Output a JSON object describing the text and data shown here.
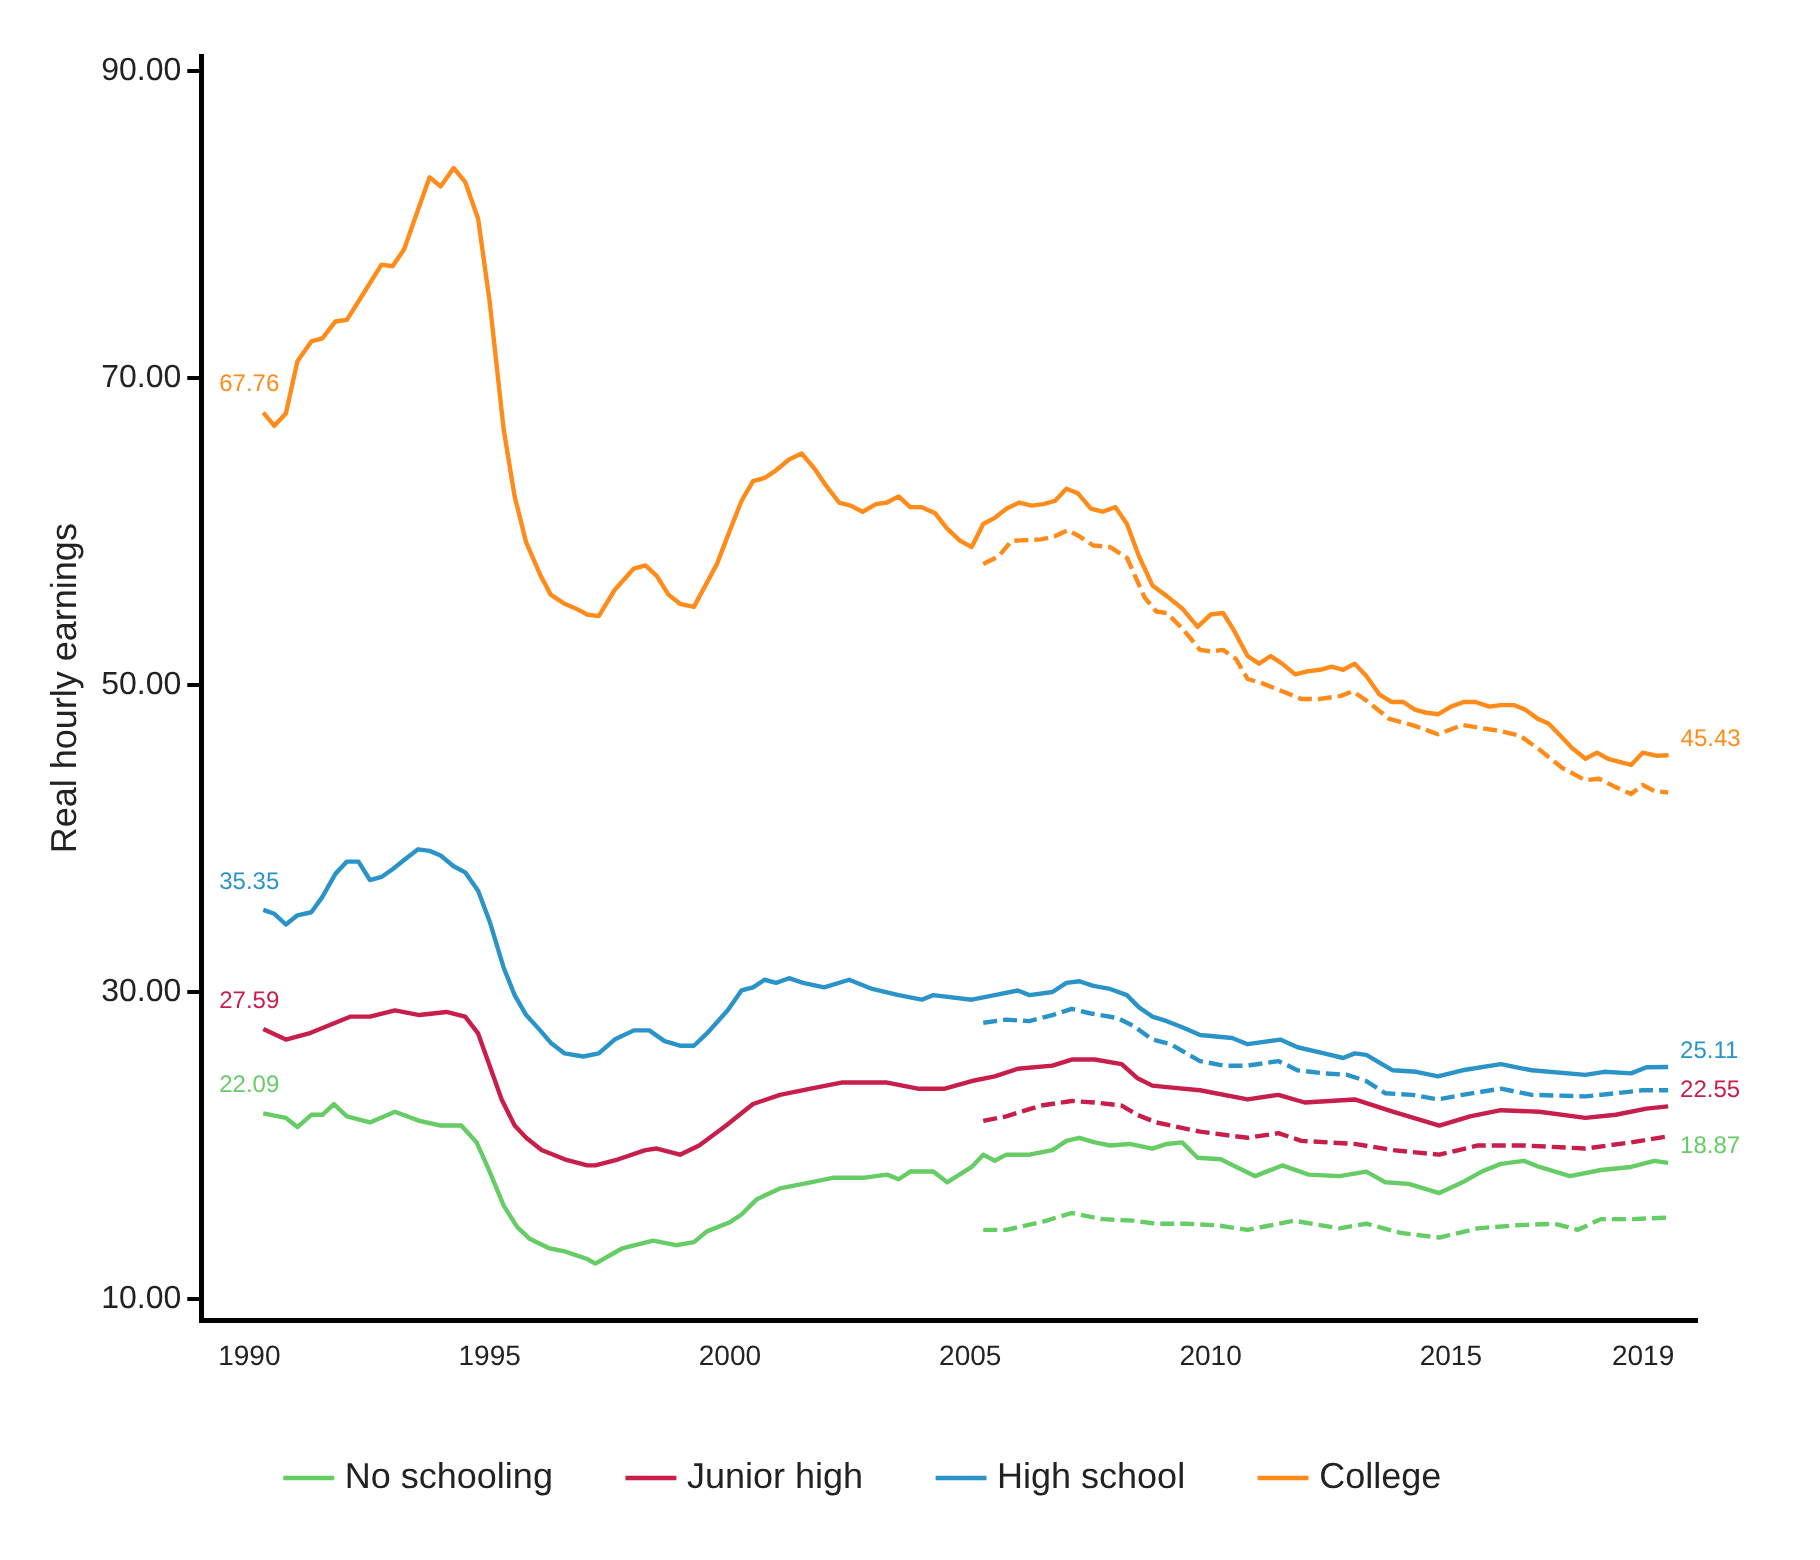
{
  "chart_data": {
    "type": "line",
    "ylabel": "Real hourly earnings",
    "xlim": [
      1989.0,
      2020.1
    ],
    "xticks": [
      1990,
      1995,
      2000,
      2005,
      2010,
      2015,
      2019
    ],
    "ylim": [
      8.6,
      91
    ],
    "yticks": [
      {
        "value": 10,
        "label": "10.00"
      },
      {
        "value": 30,
        "label": "30.00"
      },
      {
        "value": 50,
        "label": "50.00"
      },
      {
        "value": 70,
        "label": "70.00"
      },
      {
        "value": 90,
        "label": "90.00"
      }
    ],
    "grid": false,
    "legend": "bottom",
    "marker": "none",
    "series": [
      {
        "name": "No schooling",
        "color": "#66cc66",
        "line_style": "solid",
        "x": [
          1990.29,
          1990.76,
          1991.0,
          1991.29,
          1991.52,
          1991.76,
          1992.03,
          1992.51,
          1993.03,
          1993.54,
          1993.98,
          1994.41,
          1994.73,
          1995.0,
          1995.29,
          1995.57,
          1995.84,
          1996.24,
          1996.56,
          1997.03,
          1997.2,
          1997.76,
          1998.4,
          1998.88,
          1999.25,
          1999.52,
          2000.0,
          2000.24,
          2000.56,
          2001.04,
          2001.68,
          2002.16,
          2002.8,
          2003.27,
          2003.51,
          2003.75,
          2004.23,
          2004.52,
          2005.03,
          2005.27,
          2005.51,
          2005.75,
          2006.23,
          2006.71,
          2007.0,
          2007.27,
          2007.59,
          2007.91,
          2008.31,
          2008.79,
          2009.09,
          2009.41,
          2009.73,
          2010.21,
          2010.93,
          2011.49,
          2012.04,
          2012.68,
          2013.24,
          2013.64,
          2014.12,
          2014.76,
          2015.24,
          2015.64,
          2016.04,
          2016.52,
          2016.84,
          2017.48,
          2018.12,
          2018.75,
          2019.23,
          2019.52
        ],
        "values": [
          22.09,
          21.8,
          21.2,
          22.0,
          22.0,
          22.7,
          21.9,
          21.5,
          22.2,
          21.6,
          21.3,
          21.3,
          20.2,
          18.3,
          16.1,
          14.7,
          13.9,
          13.3,
          13.1,
          12.6,
          12.3,
          13.3,
          13.8,
          13.5,
          13.7,
          14.4,
          15.0,
          15.5,
          16.5,
          17.2,
          17.6,
          17.9,
          17.9,
          18.1,
          17.8,
          18.3,
          18.3,
          17.6,
          18.6,
          19.4,
          19.0,
          19.4,
          19.4,
          19.7,
          20.3,
          20.5,
          20.2,
          20.0,
          20.1,
          19.8,
          20.1,
          20.2,
          19.2,
          19.1,
          18.0,
          18.7,
          18.1,
          18.0,
          18.3,
          17.6,
          17.5,
          16.9,
          17.6,
          18.3,
          18.8,
          19.0,
          18.6,
          18.0,
          18.4,
          18.6,
          19.0,
          18.87
        ]
      },
      {
        "name": "Junior high",
        "color": "#c71e4b",
        "line_style": "solid",
        "x": [
          1990.29,
          1990.76,
          1991.24,
          1991.79,
          1992.11,
          1992.51,
          1993.03,
          1993.54,
          1994.1,
          1994.49,
          1994.76,
          1995.0,
          1995.25,
          1995.52,
          1995.76,
          1996.08,
          1996.56,
          1997.03,
          1997.2,
          1997.68,
          1998.24,
          1998.48,
          1998.96,
          1999.36,
          1999.92,
          2000.48,
          2001.04,
          2001.68,
          2002.32,
          2003.27,
          2003.91,
          2004.47,
          2005.03,
          2005.51,
          2005.99,
          2006.71,
          2007.11,
          2007.59,
          2008.15,
          2008.47,
          2008.79,
          2009.09,
          2009.78,
          2010.77,
          2011.41,
          2011.96,
          2013.0,
          2013.79,
          2014.76,
          2015.4,
          2016.04,
          2016.84,
          2017.8,
          2018.43,
          2019.07,
          2019.52
        ],
        "values": [
          27.59,
          26.9,
          27.3,
          28.0,
          28.4,
          28.4,
          28.8,
          28.5,
          28.7,
          28.4,
          27.3,
          25.2,
          23.0,
          21.3,
          20.5,
          19.7,
          19.1,
          18.7,
          18.7,
          19.1,
          19.7,
          19.8,
          19.4,
          20.0,
          21.3,
          22.7,
          23.3,
          23.7,
          24.1,
          24.1,
          23.7,
          23.7,
          24.2,
          24.5,
          25.0,
          25.2,
          25.6,
          25.6,
          25.3,
          24.4,
          23.9,
          23.8,
          23.6,
          23.0,
          23.3,
          22.8,
          23.0,
          22.2,
          21.3,
          21.9,
          22.3,
          22.2,
          21.8,
          22.0,
          22.4,
          22.55
        ]
      },
      {
        "name": "High school",
        "color": "#2a94c8",
        "line_style": "solid",
        "x": [
          1990.29,
          1990.52,
          1990.76,
          1991.0,
          1991.29,
          1991.52,
          1991.79,
          1992.03,
          1992.27,
          1992.51,
          1992.75,
          1992.98,
          1993.22,
          1993.51,
          1993.75,
          1993.98,
          1994.25,
          1994.49,
          1994.76,
          1995.0,
          1995.29,
          1995.52,
          1995.76,
          1996.05,
          1996.27,
          1996.56,
          1996.95,
          1997.27,
          1997.6,
          1998.0,
          1998.32,
          1998.64,
          1998.96,
          1999.25,
          1999.52,
          1999.95,
          2000.24,
          2000.48,
          2000.72,
          2000.96,
          2001.23,
          2001.52,
          2001.96,
          2002.48,
          2002.96,
          2003.51,
          2003.99,
          2004.23,
          2005.03,
          2005.51,
          2005.99,
          2006.23,
          2006.71,
          2007.0,
          2007.27,
          2007.56,
          2007.91,
          2008.26,
          2008.51,
          2008.79,
          2009.09,
          2009.41,
          2009.78,
          2010.45,
          2010.77,
          2011.45,
          2011.81,
          2012.36,
          2012.76,
          2013.0,
          2013.24,
          2013.79,
          2014.28,
          2014.73,
          2015.24,
          2016.04,
          2016.68,
          2017.8,
          2018.19,
          2018.75,
          2019.07,
          2019.52
        ],
        "values": [
          35.35,
          35.1,
          34.4,
          35.0,
          35.2,
          36.2,
          37.7,
          38.5,
          38.5,
          37.3,
          37.5,
          38.0,
          38.6,
          39.3,
          39.2,
          38.9,
          38.2,
          37.8,
          36.6,
          34.6,
          31.6,
          29.8,
          28.5,
          27.5,
          26.7,
          26.0,
          25.8,
          26.0,
          26.9,
          27.5,
          27.5,
          26.8,
          26.5,
          26.5,
          27.3,
          28.8,
          30.1,
          30.3,
          30.8,
          30.6,
          30.9,
          30.6,
          30.3,
          30.8,
          30.2,
          29.8,
          29.5,
          29.8,
          29.5,
          29.8,
          30.1,
          29.8,
          30.0,
          30.6,
          30.7,
          30.4,
          30.2,
          29.8,
          29.0,
          28.4,
          28.1,
          27.7,
          27.2,
          27.0,
          26.6,
          26.9,
          26.4,
          26.0,
          25.7,
          26.0,
          25.9,
          24.9,
          24.8,
          24.5,
          24.9,
          25.3,
          24.9,
          24.6,
          24.8,
          24.7,
          25.1,
          25.11
        ]
      },
      {
        "name": "College",
        "color": "#ff8c1a",
        "line_style": "solid",
        "x": [
          1990.29,
          1990.52,
          1990.76,
          1991.0,
          1991.29,
          1991.52,
          1991.79,
          1992.03,
          1992.27,
          1992.75,
          1992.98,
          1993.22,
          1993.75,
          1993.98,
          1994.25,
          1994.49,
          1994.76,
          1995.0,
          1995.29,
          1995.52,
          1995.76,
          1996.05,
          1996.27,
          1996.56,
          1996.79,
          1997.03,
          1997.27,
          1997.6,
          1998.0,
          1998.24,
          1998.48,
          1998.72,
          1998.96,
          1999.25,
          1999.73,
          2000.0,
          2000.24,
          2000.48,
          2000.72,
          2000.96,
          2001.23,
          2001.49,
          2001.76,
          2002.0,
          2002.27,
          2002.51,
          2002.76,
          2003.04,
          2003.27,
          2003.51,
          2003.75,
          2003.99,
          2004.27,
          2004.52,
          2004.79,
          2005.03,
          2005.27,
          2005.51,
          2005.75,
          2006.02,
          2006.28,
          2006.52,
          2006.76,
          2007.0,
          2007.24,
          2007.51,
          2007.75,
          2008.02,
          2008.26,
          2008.51,
          2008.79,
          2009.09,
          2009.41,
          2009.73,
          2010.0,
          2010.26,
          2010.48,
          2010.77,
          2011.01,
          2011.25,
          2011.49,
          2011.76,
          2012.01,
          2012.28,
          2012.52,
          2012.76,
          2013.0,
          2013.24,
          2013.51,
          2013.77,
          2014.01,
          2014.25,
          2014.49,
          2014.73,
          2015.0,
          2015.27,
          2015.51,
          2015.8,
          2016.04,
          2016.31,
          2016.55,
          2016.81,
          2017.03,
          2017.28,
          2017.52,
          2017.8,
          2018.04,
          2018.27,
          2018.51,
          2018.75,
          2018.99,
          2019.27,
          2019.53
        ],
        "values": [
          67.76,
          66.9,
          67.7,
          71.1,
          72.4,
          72.6,
          73.7,
          73.8,
          75.0,
          77.4,
          77.3,
          78.4,
          83.1,
          82.5,
          83.7,
          82.8,
          80.4,
          75.0,
          66.7,
          62.3,
          59.3,
          57.2,
          55.9,
          55.3,
          55.0,
          54.6,
          54.5,
          56.2,
          57.6,
          57.8,
          57.1,
          55.9,
          55.3,
          55.1,
          57.9,
          60.1,
          62.0,
          63.3,
          63.5,
          64.0,
          64.7,
          65.1,
          64.1,
          63.0,
          61.9,
          61.7,
          61.3,
          61.8,
          61.9,
          62.3,
          61.6,
          61.6,
          61.2,
          60.2,
          59.4,
          59.0,
          60.5,
          60.9,
          61.5,
          61.9,
          61.7,
          61.8,
          62.0,
          62.8,
          62.5,
          61.5,
          61.3,
          61.6,
          60.5,
          58.4,
          56.5,
          55.8,
          55.0,
          53.8,
          54.6,
          54.7,
          53.6,
          51.9,
          51.4,
          51.9,
          51.4,
          50.7,
          50.9,
          51.0,
          51.2,
          51.0,
          51.4,
          50.6,
          49.4,
          48.9,
          48.9,
          48.4,
          48.2,
          48.1,
          48.6,
          48.9,
          48.9,
          48.6,
          48.7,
          48.7,
          48.4,
          47.8,
          47.5,
          46.7,
          45.9,
          45.2,
          45.6,
          45.2,
          45.0,
          44.8,
          45.6,
          45.4,
          45.43
        ]
      },
      {
        "color": "#66cc66",
        "line_style": "dashed",
        "x": [
          2005.27,
          2005.75,
          2006.47,
          2007.11,
          2007.75,
          2008.39,
          2008.87,
          2009.49,
          2010.13,
          2010.77,
          2011.73,
          2012.68,
          2013.24,
          2013.95,
          2014.76,
          2015.56,
          2016.36,
          2017.16,
          2017.64,
          2018.12,
          2018.75,
          2019.52
        ],
        "values": [
          14.5,
          14.5,
          15.0,
          15.6,
          15.2,
          15.1,
          14.9,
          14.9,
          14.8,
          14.5,
          15.1,
          14.6,
          14.9,
          14.3,
          14.0,
          14.6,
          14.8,
          14.9,
          14.5,
          15.2,
          15.2,
          15.3
        ]
      },
      {
        "color": "#c71e4b",
        "line_style": "dashed",
        "x": [
          2005.27,
          2005.75,
          2006.47,
          2007.11,
          2007.59,
          2008.15,
          2008.47,
          2008.87,
          2009.17,
          2009.78,
          2010.77,
          2011.41,
          2011.89,
          2013.0,
          2013.79,
          2014.76,
          2015.56,
          2016.52,
          2017.8,
          2018.75,
          2019.52
        ],
        "values": [
          21.6,
          21.9,
          22.6,
          22.9,
          22.8,
          22.6,
          22.0,
          21.5,
          21.3,
          20.9,
          20.5,
          20.8,
          20.3,
          20.1,
          19.7,
          19.4,
          20.0,
          20.0,
          19.8,
          20.2,
          20.6
        ]
      },
      {
        "color": "#2a94c8",
        "line_style": "dashed",
        "x": [
          2005.27,
          2005.75,
          2006.23,
          2006.71,
          2007.11,
          2007.51,
          2008.07,
          2008.39,
          2008.79,
          2009.17,
          2009.78,
          2010.29,
          2010.77,
          2011.41,
          2011.81,
          2012.36,
          2012.84,
          2013.24,
          2013.64,
          2014.2,
          2014.73,
          2015.24,
          2016.04,
          2016.68,
          2017.8,
          2018.43,
          2018.99,
          2019.52
        ],
        "values": [
          28.0,
          28.2,
          28.1,
          28.5,
          28.9,
          28.6,
          28.3,
          27.8,
          26.9,
          26.6,
          25.5,
          25.2,
          25.2,
          25.5,
          24.9,
          24.7,
          24.6,
          24.2,
          23.4,
          23.3,
          23.0,
          23.3,
          23.7,
          23.3,
          23.2,
          23.4,
          23.6,
          23.6
        ]
      },
      {
        "color": "#ff8c1a",
        "line_style": "dashed",
        "x": [
          2005.27,
          2005.59,
          2005.86,
          2006.47,
          2006.76,
          2007.03,
          2007.27,
          2007.56,
          2007.91,
          2008.26,
          2008.63,
          2008.87,
          2009.09,
          2009.41,
          2009.78,
          2010.0,
          2010.26,
          2010.53,
          2010.77,
          2011.09,
          2011.49,
          2011.89,
          2012.28,
          2012.71,
          2012.96,
          2013.24,
          2013.72,
          2014.2,
          2014.73,
          2015.24,
          2015.64,
          2016.04,
          2016.44,
          2016.84,
          2017.32,
          2017.8,
          2018.08,
          2018.4,
          2018.75,
          2018.99,
          2019.23,
          2019.52
        ],
        "values": [
          57.9,
          58.4,
          59.4,
          59.5,
          59.7,
          60.1,
          59.7,
          59.1,
          59.0,
          58.3,
          55.7,
          54.8,
          54.7,
          53.7,
          52.3,
          52.2,
          52.3,
          51.7,
          50.4,
          50.1,
          49.6,
          49.1,
          49.1,
          49.3,
          49.6,
          49.0,
          47.8,
          47.4,
          46.8,
          47.4,
          47.2,
          47.0,
          46.7,
          45.8,
          44.6,
          43.8,
          43.9,
          43.4,
          42.9,
          43.5,
          43.1,
          43.0
        ]
      }
    ],
    "annotations": [
      {
        "text": "67.76",
        "x": 1990.29,
        "y": 67.76
      },
      {
        "text": "35.35",
        "x": 1990.29,
        "y": 35.35
      },
      {
        "text": "27.59",
        "x": 1990.29,
        "y": 27.59
      },
      {
        "text": "22.09",
        "x": 1990.29,
        "y": 22.09
      },
      {
        "text": "45.43",
        "x": 2019.53,
        "y": 45.43
      },
      {
        "text": "25.11",
        "x": 2019.52,
        "y": 25.11
      },
      {
        "text": "22.55",
        "x": 2019.52,
        "y": 22.55
      },
      {
        "text": "18.87",
        "x": 2019.52,
        "y": 18.87
      }
    ]
  }
}
